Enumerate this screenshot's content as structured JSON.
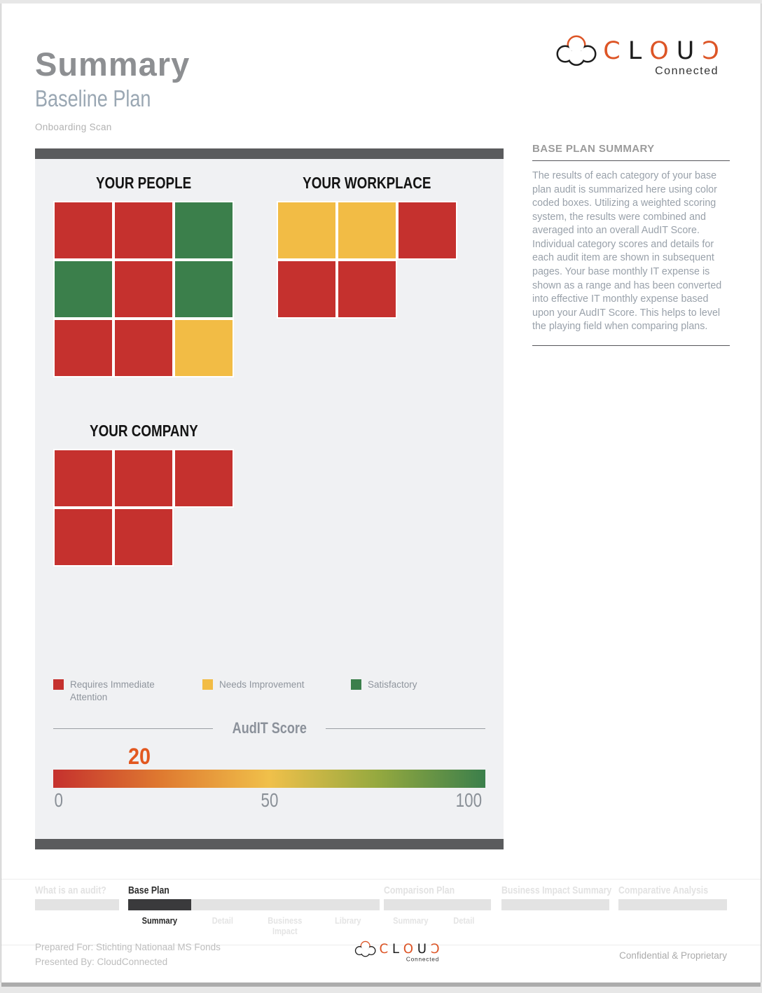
{
  "page": {
    "title": "Summary",
    "subtitle": "Baseline Plan",
    "scan_type": "Onboarding Scan"
  },
  "logo": {
    "letters": [
      {
        "glyph": "C",
        "color": "#DD5526"
      },
      {
        "glyph": "L",
        "color": "#1d1d1d"
      },
      {
        "glyph": "O",
        "color": "#DD5526"
      },
      {
        "glyph": "U",
        "color": "#1d1d1d"
      },
      {
        "glyph": "Ɔ",
        "color": "#DD5526"
      }
    ],
    "subtext": "Connected"
  },
  "sidebar": {
    "heading": "BASE PLAN SUMMARY",
    "body": "The results of each category of your base plan audit is summarized here using color coded boxes. Utilizing a weighted scoring system, the results were combined and averaged into an overall AudIT Score. Individual category scores and details for each audit item are shown in subsequent pages. Your base monthly IT expense is shown as a range and has been converted into effective IT monthly expense based upon your AudIT Score. This helps to level the playing field when comparing plans."
  },
  "colors": {
    "red": "#C5312E",
    "yellow": "#F2BC45",
    "green": "#3B7F4B",
    "score_orange": "#E2571F",
    "panel_gray": "#F0F1F3",
    "bar_dark_gray": "#5a5b5d"
  },
  "grids": {
    "people": {
      "title": "YOUR PEOPLE",
      "rows": [
        [
          "red",
          "red",
          "green"
        ],
        [
          "green",
          "red",
          "green"
        ],
        [
          "red",
          "red",
          "yellow"
        ]
      ]
    },
    "workplace": {
      "title": "YOUR WORKPLACE",
      "rows": [
        [
          "yellow",
          "yellow",
          "red"
        ],
        [
          "red",
          "red"
        ]
      ]
    },
    "company": {
      "title": "YOUR COMPANY",
      "rows": [
        [
          "red",
          "red",
          "red"
        ],
        [
          "red",
          "red"
        ]
      ]
    }
  },
  "legend": {
    "items": [
      {
        "label": "Requires Immediate Attention",
        "color": "red"
      },
      {
        "label": "Needs Improvement",
        "color": "yellow"
      },
      {
        "label": "Satisfactory",
        "color": "green"
      }
    ]
  },
  "audit_score": {
    "label": "AudIT Score",
    "value": 20,
    "scale": [
      "0",
      "50",
      "100"
    ]
  },
  "nav": {
    "sections": [
      {
        "label": "What is an audit?",
        "items": []
      },
      {
        "label": "Base Plan",
        "items": [
          {
            "label": "Summary"
          },
          {
            "label": "Detail"
          },
          {
            "label": "Business Impact"
          },
          {
            "label": "Library"
          }
        ]
      },
      {
        "label": "Comparison Plan",
        "items": [
          {
            "label": "Summary"
          },
          {
            "label": "Detail"
          }
        ]
      },
      {
        "label": "Business Impact Summary",
        "items": []
      },
      {
        "label": "Comparative Analysis",
        "items": []
      }
    ]
  },
  "footer": {
    "prepared_for": "Prepared For: Stichting Nationaal MS Fonds",
    "presented_by": "Presented By: CloudConnected",
    "confidential": "Confidential & Proprietary"
  }
}
